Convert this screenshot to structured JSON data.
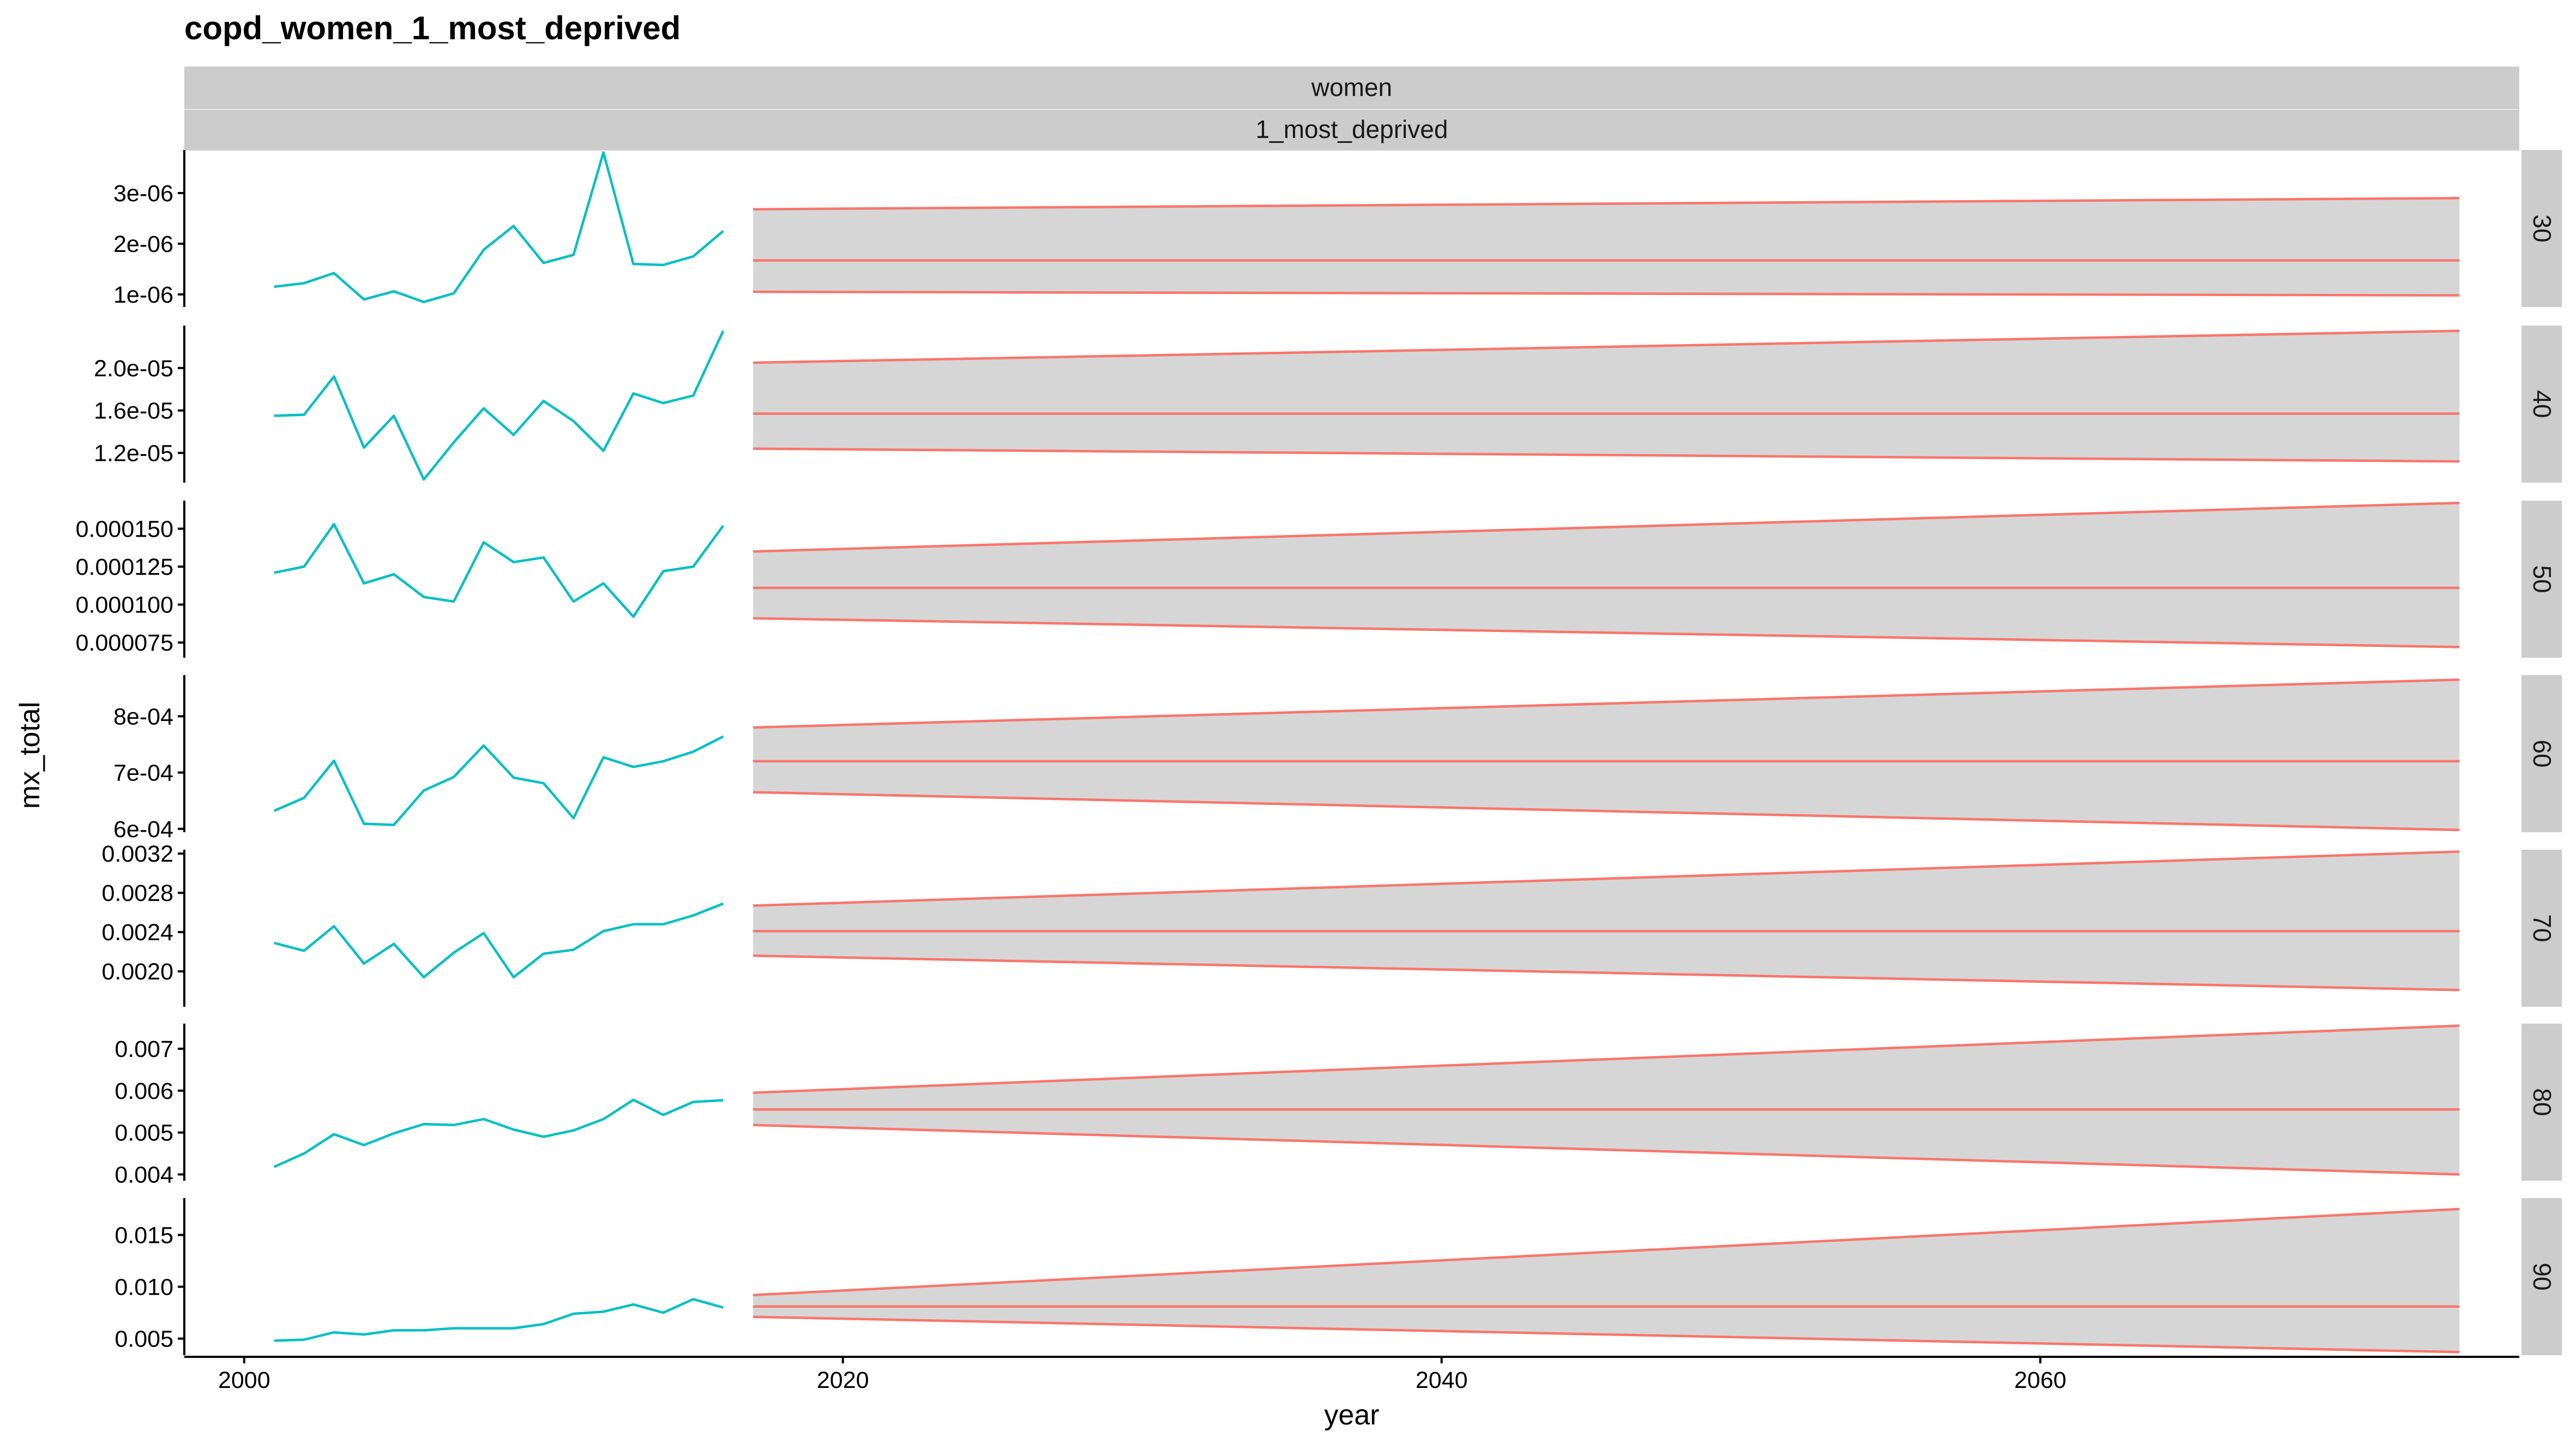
{
  "chart_data": {
    "type": "line",
    "title": "copd_women_1_most_deprived",
    "xlabel": "year",
    "ylabel": "mx_total",
    "column_strips": [
      "women",
      "1_most_deprived"
    ],
    "xlim": [
      1998,
      2076
    ],
    "x_ticks": [
      2000,
      2020,
      2040,
      2060
    ],
    "x_tick_labels": [
      "2000",
      "2020",
      "2040",
      "2060"
    ],
    "grid": false,
    "legend": "none",
    "colors": {
      "observed": "#00BFC4",
      "forecast": "#F8766D",
      "interval_fill": "#d6d6d6",
      "strip": "#cccccc"
    },
    "panels": [
      {
        "facet": "30",
        "ylim": [
          7.5e-07,
          3.85e-06
        ],
        "y_ticks": [
          1e-06,
          2e-06,
          3e-06
        ],
        "y_tick_labels": [
          "1e-06",
          "2e-06",
          "3e-06"
        ],
        "observed": {
          "x": [
            2001,
            2002,
            2003,
            2004,
            2005,
            2006,
            2007,
            2008,
            2009,
            2010,
            2011,
            2012,
            2013,
            2014,
            2015,
            2016
          ],
          "y": [
            1.15e-06,
            1.22e-06,
            1.42e-06,
            9e-07,
            1.06e-06,
            8.5e-07,
            1.02e-06,
            1.88e-06,
            2.35e-06,
            1.62e-06,
            1.78e-06,
            3.8e-06,
            1.6e-06,
            1.58e-06,
            1.75e-06,
            2.25e-06
          ]
        },
        "forecast": {
          "x": [
            2017,
            2074
          ],
          "mean": [
            1.67e-06,
            1.67e-06
          ],
          "lower": [
            1.05e-06,
            9.8e-07
          ],
          "upper": [
            2.68e-06,
            2.9e-06
          ]
        }
      },
      {
        "facet": "40",
        "ylim": [
          9.2e-06,
          2.4e-05
        ],
        "y_ticks": [
          1.2e-05,
          1.6e-05,
          2e-05
        ],
        "y_tick_labels": [
          "1.2e-05",
          "1.6e-05",
          "2.0e-05"
        ],
        "observed": {
          "x": [
            2001,
            2002,
            2003,
            2004,
            2005,
            2006,
            2007,
            2008,
            2009,
            2010,
            2011,
            2012,
            2013,
            2014,
            2015,
            2016
          ],
          "y": [
            1.55e-05,
            1.56e-05,
            1.92e-05,
            1.25e-05,
            1.55e-05,
            9.5e-06,
            1.3e-05,
            1.62e-05,
            1.37e-05,
            1.69e-05,
            1.5e-05,
            1.22e-05,
            1.76e-05,
            1.67e-05,
            1.74e-05,
            2.35e-05
          ]
        },
        "forecast": {
          "x": [
            2017,
            2074
          ],
          "mean": [
            1.57e-05,
            1.57e-05
          ],
          "lower": [
            1.24e-05,
            1.12e-05
          ],
          "upper": [
            2.05e-05,
            2.35e-05
          ]
        }
      },
      {
        "facet": "50",
        "ylim": [
          6.5e-05,
          0.0001685
        ],
        "y_ticks": [
          7.5e-05,
          0.0001,
          0.000125,
          0.00015
        ],
        "y_tick_labels": [
          "0.000075",
          "0.000100",
          "0.000125",
          "0.000150"
        ],
        "observed": {
          "x": [
            2001,
            2002,
            2003,
            2004,
            2005,
            2006,
            2007,
            2008,
            2009,
            2010,
            2011,
            2012,
            2013,
            2014,
            2015,
            2016
          ],
          "y": [
            0.000121,
            0.000125,
            0.000153,
            0.000114,
            0.00012,
            0.000105,
            0.000102,
            0.000141,
            0.000128,
            0.000131,
            0.000102,
            0.000114,
            9.2e-05,
            0.000122,
            0.000125,
            0.000152
          ]
        },
        "forecast": {
          "x": [
            2017,
            2074
          ],
          "mean": [
            0.000111,
            0.000111
          ],
          "lower": [
            9.1e-05,
            7.2e-05
          ],
          "upper": [
            0.000135,
            0.000167
          ]
        }
      },
      {
        "facet": "60",
        "ylim": [
          0.000594,
          0.000873
        ],
        "y_ticks": [
          0.0006,
          0.0007,
          0.0008
        ],
        "y_tick_labels": [
          "6e-04",
          "7e-04",
          "8e-04"
        ],
        "observed": {
          "x": [
            2001,
            2002,
            2003,
            2004,
            2005,
            2006,
            2007,
            2008,
            2009,
            2010,
            2011,
            2012,
            2013,
            2014,
            2015,
            2016
          ],
          "y": [
            0.000632,
            0.000655,
            0.000721,
            0.000609,
            0.000607,
            0.000668,
            0.000692,
            0.000748,
            0.000691,
            0.000681,
            0.000619,
            0.000727,
            0.00071,
            0.00072,
            0.000737,
            0.000764
          ]
        },
        "forecast": {
          "x": [
            2017,
            2074
          ],
          "mean": [
            0.00072,
            0.00072
          ],
          "lower": [
            0.000665,
            0.000598
          ],
          "upper": [
            0.00078,
            0.000865
          ]
        }
      },
      {
        "facet": "70",
        "ylim": [
          0.00164,
          0.00324
        ],
        "y_ticks": [
          0.002,
          0.0024,
          0.0028,
          0.0032
        ],
        "y_tick_labels": [
          "0.0020",
          "0.0024",
          "0.0028",
          "0.0032"
        ],
        "observed": {
          "x": [
            2001,
            2002,
            2003,
            2004,
            2005,
            2006,
            2007,
            2008,
            2009,
            2010,
            2011,
            2012,
            2013,
            2014,
            2015,
            2016
          ],
          "y": [
            0.00229,
            0.00221,
            0.00246,
            0.00208,
            0.00228,
            0.00194,
            0.00219,
            0.00239,
            0.00194,
            0.00218,
            0.00222,
            0.00241,
            0.00248,
            0.00248,
            0.00257,
            0.00269
          ]
        },
        "forecast": {
          "x": [
            2017,
            2074
          ],
          "mean": [
            0.00241,
            0.00241
          ],
          "lower": [
            0.00216,
            0.00181
          ],
          "upper": [
            0.00267,
            0.00322
          ]
        }
      },
      {
        "facet": "80",
        "ylim": [
          0.00385,
          0.0076
        ],
        "y_ticks": [
          0.004,
          0.005,
          0.006,
          0.007
        ],
        "y_tick_labels": [
          "0.004",
          "0.005",
          "0.006",
          "0.007"
        ],
        "observed": {
          "x": [
            2001,
            2002,
            2003,
            2004,
            2005,
            2006,
            2007,
            2008,
            2009,
            2010,
            2011,
            2012,
            2013,
            2014,
            2015,
            2016
          ],
          "y": [
            0.00418,
            0.0045,
            0.00496,
            0.0047,
            0.00498,
            0.0052,
            0.00518,
            0.00532,
            0.00507,
            0.0049,
            0.00505,
            0.00532,
            0.00578,
            0.00542,
            0.00573,
            0.00577
          ]
        },
        "forecast": {
          "x": [
            2017,
            2074
          ],
          "mean": [
            0.00555,
            0.00555
          ],
          "lower": [
            0.00518,
            0.004
          ],
          "upper": [
            0.00595,
            0.00755
          ]
        }
      },
      {
        "facet": "90",
        "ylim": [
          0.0034,
          0.01855
        ],
        "y_ticks": [
          0.005,
          0.01,
          0.015
        ],
        "y_tick_labels": [
          "0.005",
          "0.010",
          "0.015"
        ],
        "observed": {
          "x": [
            2001,
            2002,
            2003,
            2004,
            2005,
            2006,
            2007,
            2008,
            2009,
            2010,
            2011,
            2012,
            2013,
            2014,
            2015,
            2016
          ],
          "y": [
            0.0048,
            0.0049,
            0.0056,
            0.0054,
            0.0058,
            0.0058,
            0.006,
            0.006,
            0.006,
            0.0064,
            0.0074,
            0.0076,
            0.0083,
            0.0075,
            0.0088,
            0.008
          ]
        },
        "forecast": {
          "x": [
            2017,
            2074
          ],
          "mean": [
            0.0081,
            0.0081
          ],
          "lower": [
            0.0071,
            0.0037
          ],
          "upper": [
            0.0092,
            0.0175
          ]
        }
      }
    ]
  }
}
